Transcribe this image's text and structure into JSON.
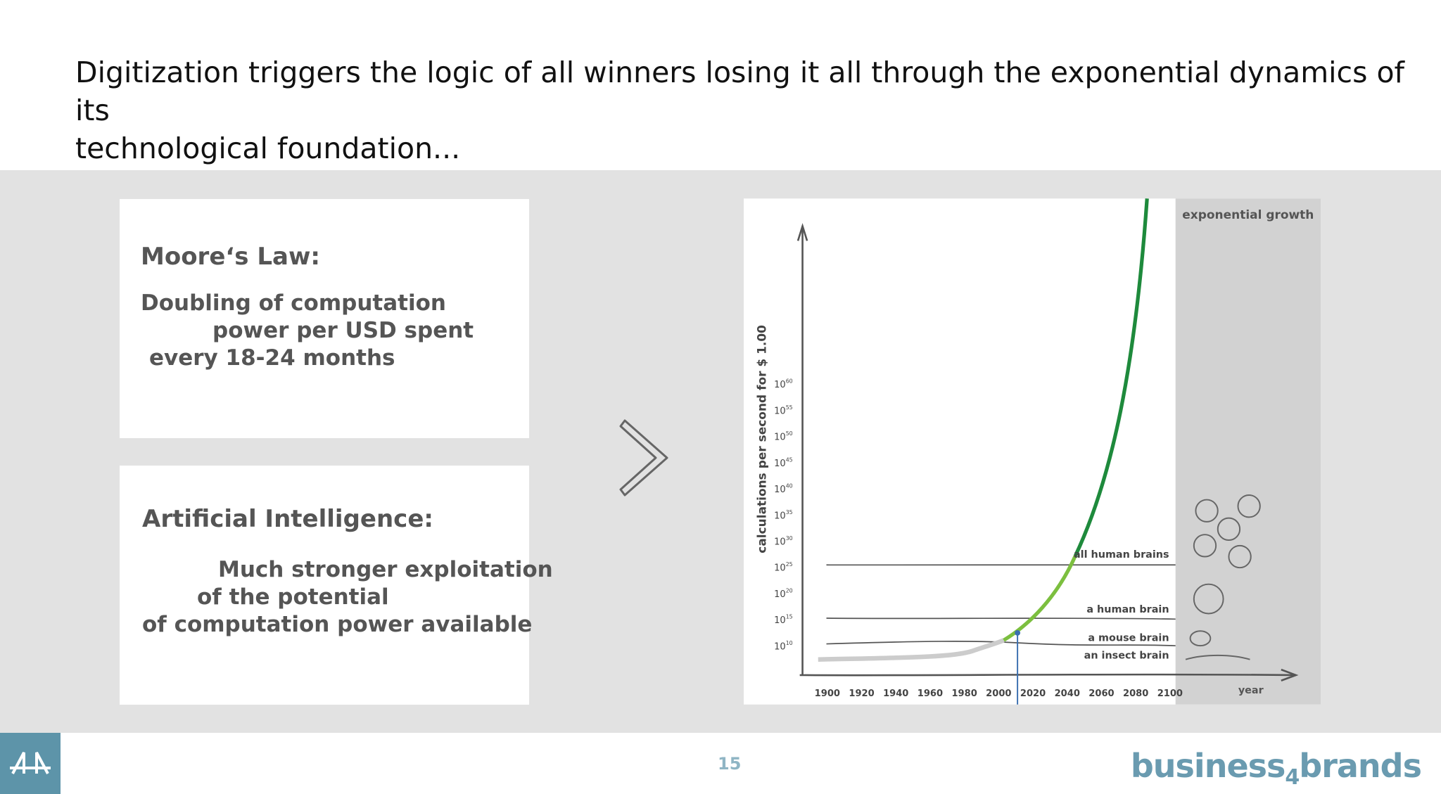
{
  "header": {
    "title_lines": [
      "Digitization triggers the logic of all winners losing it all through the exponential dynamics of its",
      "technological foundation..."
    ]
  },
  "boxes": [
    {
      "heading": "Moore‘s Law:",
      "lines": [
        "Doubling of computation",
        "power per USD spent",
        "every 18-24 months"
      ]
    },
    {
      "heading": "Artificial Intelligence:",
      "lines": [
        "Much stronger exploitation",
        "of the potential",
        "of computation power available"
      ]
    }
  ],
  "figure": {
    "y_axis_label": "calculations per second for $ 1.00",
    "x_axis_label": "year",
    "column_label": "exponential growth",
    "y_ticks": [
      {
        "base": "10",
        "exponent": "60"
      },
      {
        "base": "10",
        "exponent": "55"
      },
      {
        "base": "10",
        "exponent": "50"
      },
      {
        "base": "10",
        "exponent": "45"
      },
      {
        "base": "10",
        "exponent": "40"
      },
      {
        "base": "10",
        "exponent": "35"
      },
      {
        "base": "10",
        "exponent": "30"
      },
      {
        "base": "10",
        "exponent": "25"
      },
      {
        "base": "10",
        "exponent": "20"
      },
      {
        "base": "10",
        "exponent": "15"
      },
      {
        "base": "10",
        "exponent": "10"
      }
    ],
    "x_ticks": [
      "1900",
      "1920",
      "1940",
      "1960",
      "1980",
      "2000",
      "2020",
      "2040",
      "2060",
      "2080",
      "2100"
    ],
    "levels": [
      "all human brains",
      "a human brain",
      "a mouse brain",
      "an insect brain"
    ]
  },
  "footer": {
    "page_number": "15",
    "brand": {
      "prefix": "business",
      "digit": "4",
      "suffix": "brands"
    }
  }
}
